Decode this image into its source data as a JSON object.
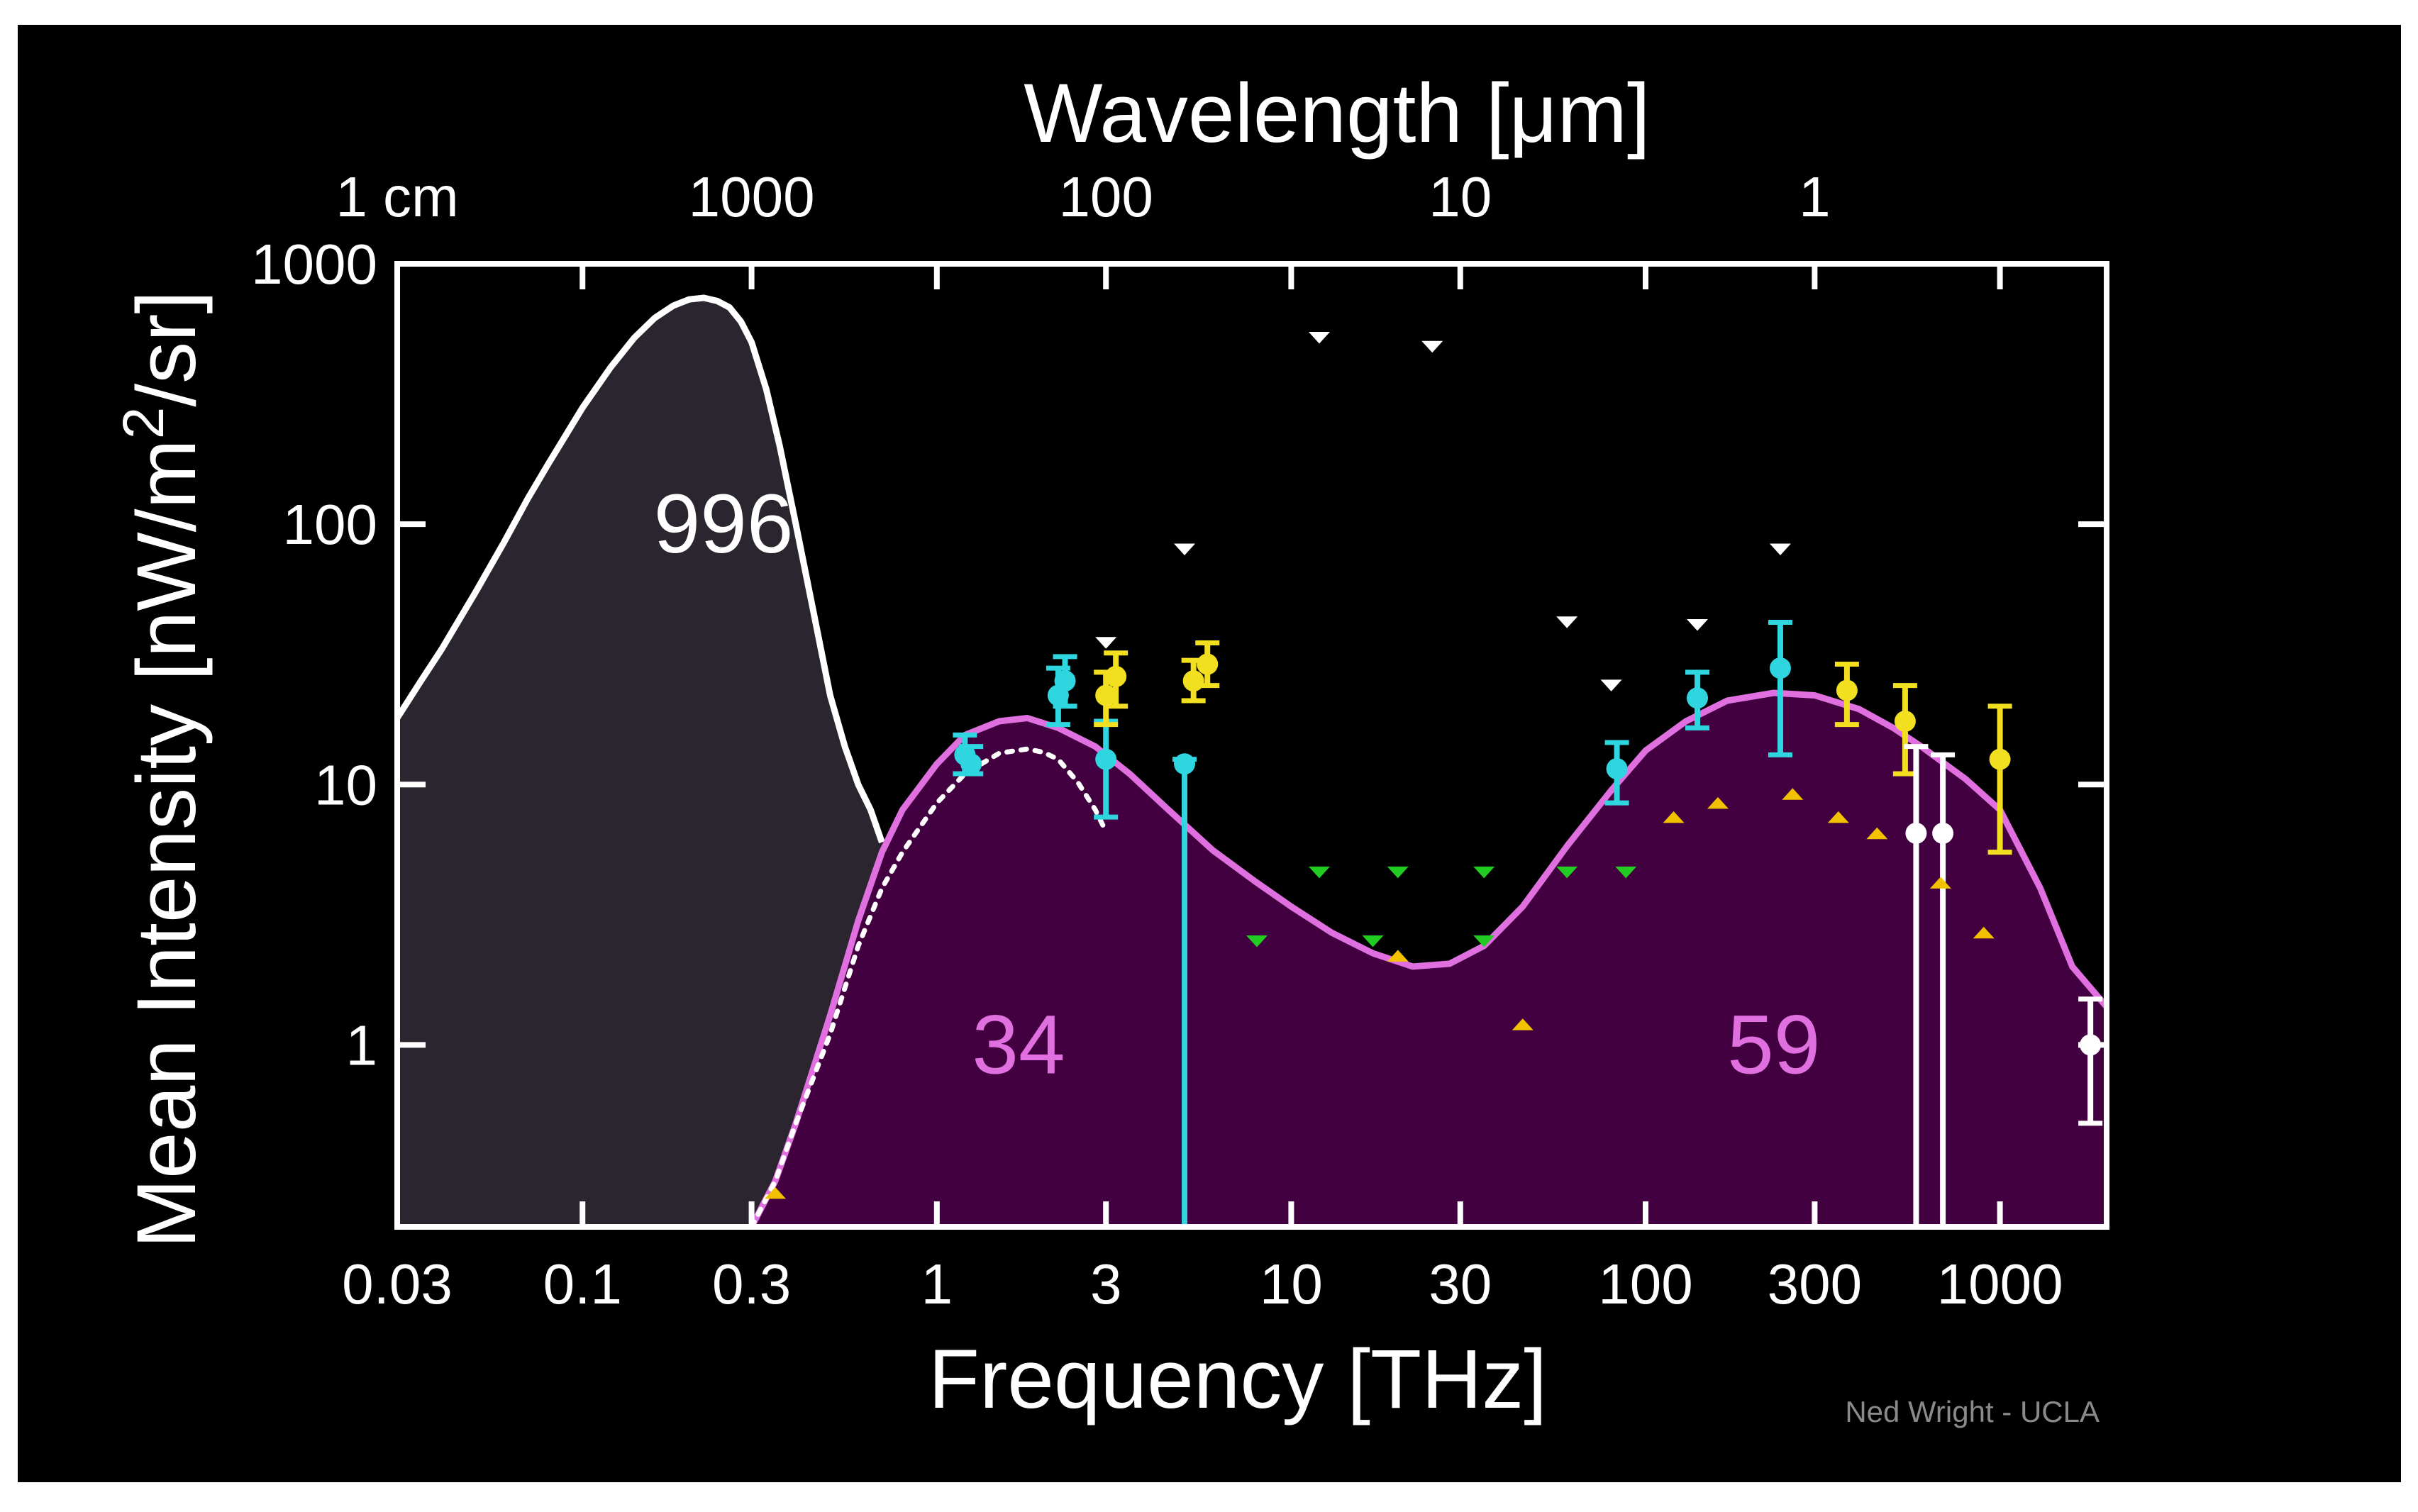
{
  "chart_data": {
    "type": "line",
    "title": "",
    "xlabel": "Frequency [THz]",
    "x2label": "Wavelength [μm]",
    "ylabel_main": "Mean Intensity [nW/m",
    "ylabel_sup": "2",
    "ylabel_tail": "/sr]",
    "x_scale": "log",
    "y_scale": "log",
    "xlim": [
      0.03,
      2000
    ],
    "ylim": [
      0.2,
      1000
    ],
    "x_ticks": [
      {
        "v": 0.03,
        "label": "0.03"
      },
      {
        "v": 0.1,
        "label": "0.1"
      },
      {
        "v": 0.3,
        "label": "0.3"
      },
      {
        "v": 1,
        "label": "1"
      },
      {
        "v": 3,
        "label": "3"
      },
      {
        "v": 10,
        "label": "10"
      },
      {
        "v": 30,
        "label": "30"
      },
      {
        "v": 100,
        "label": "100"
      },
      {
        "v": 300,
        "label": "300"
      },
      {
        "v": 1000,
        "label": "1000"
      }
    ],
    "x2_ticks": [
      {
        "v": 0.03,
        "label": "1 cm"
      },
      {
        "v": 0.3,
        "label": "1000"
      },
      {
        "v": 3,
        "label": "100"
      },
      {
        "v": 30,
        "label": "10"
      },
      {
        "v": 300,
        "label": "1"
      }
    ],
    "y_ticks": [
      {
        "v": 1,
        "label": "1"
      },
      {
        "v": 10,
        "label": "10"
      },
      {
        "v": 100,
        "label": "100"
      },
      {
        "v": 1000,
        "label": "1000"
      }
    ],
    "annotations": [
      {
        "text": "996",
        "x": 0.25,
        "y": 100,
        "color": "#ffffff"
      },
      {
        "text": "34",
        "x": 1.7,
        "y": 1,
        "color": "#e070e0"
      },
      {
        "text": "59",
        "x": 230,
        "y": 1,
        "color": "#e070e0"
      }
    ],
    "credit": "Ned Wright - UCLA",
    "colors": {
      "background": "#000000",
      "frame": "#ffffff",
      "cmb_fill": "#2b2530",
      "cmb_line": "#ffffff",
      "cib_fill": "#420040",
      "cib_line": "#e070e0",
      "dotted": "#ffffff",
      "cyan": "#2fd6e0",
      "yellow": "#f2e020",
      "white_pts": "#ffffff",
      "green": "#22cc22",
      "orange": "#f2c200"
    },
    "series": [
      {
        "name": "",
        "kind": "area",
        "fill": "cmb_fill",
        "line": "cmb_line",
        "x": [
          0.03,
          0.035,
          0.04,
          0.05,
          0.06,
          0.07,
          0.08,
          0.1,
          0.12,
          0.14,
          0.16,
          0.18,
          0.2,
          0.22,
          0.24,
          0.26,
          0.28,
          0.3,
          0.33,
          0.36,
          0.4,
          0.45,
          0.5,
          0.55,
          0.6,
          0.65,
          0.7
        ],
        "y": [
          18,
          25,
          33,
          55,
          85,
          125,
          170,
          280,
          400,
          520,
          620,
          690,
          730,
          740,
          720,
          680,
          600,
          500,
          330,
          200,
          100,
          45,
          22,
          14,
          10,
          8,
          6
        ]
      },
      {
        "name": "",
        "kind": "area",
        "fill": "cib_fill",
        "line": "cib_line",
        "x": [
          0.3,
          0.35,
          0.4,
          0.5,
          0.6,
          0.7,
          0.8,
          1.0,
          1.2,
          1.5,
          1.8,
          2.2,
          2.8,
          3.5,
          4.5,
          6,
          8,
          10,
          13,
          17,
          22,
          28,
          35,
          45,
          60,
          80,
          100,
          130,
          170,
          230,
          300,
          400,
          500,
          600,
          700,
          800,
          1000,
          1300,
          1600,
          2000
        ],
        "y": [
          0.2,
          0.3,
          0.5,
          1.3,
          3,
          5.5,
          8,
          12,
          15.5,
          17.5,
          18,
          16.5,
          14,
          11,
          8,
          5.6,
          4.2,
          3.4,
          2.7,
          2.25,
          2.0,
          2.05,
          2.4,
          3.4,
          5.8,
          9.5,
          13.5,
          17.5,
          21,
          22.5,
          22,
          19.5,
          16.5,
          14,
          12,
          10.5,
          8,
          4,
          2,
          1.4
        ]
      },
      {
        "name": "",
        "kind": "dotted",
        "line": "dotted",
        "x": [
          0.3,
          0.35,
          0.4,
          0.5,
          0.6,
          0.7,
          0.8,
          1.0,
          1.2,
          1.5,
          1.8,
          2.0,
          2.2,
          2.5,
          2.8,
          3.0
        ],
        "y": [
          0.2,
          0.3,
          0.5,
          1.1,
          2.4,
          4,
          5.5,
          8.5,
          11,
          13.2,
          13.7,
          13.3,
          12.5,
          10.2,
          8,
          6.6
        ]
      }
    ],
    "error_points": [
      {
        "group": "cyan",
        "x": 1.2,
        "y": 13,
        "lo": 11,
        "hi": 15.5
      },
      {
        "group": "cyan",
        "x": 1.25,
        "y": 12,
        "lo": 11,
        "hi": 14
      },
      {
        "group": "cyan",
        "x": 2.2,
        "y": 22,
        "lo": 17,
        "hi": 28
      },
      {
        "group": "cyan",
        "x": 2.3,
        "y": 25,
        "lo": 20,
        "hi": 31
      },
      {
        "group": "cyan",
        "x": 3.0,
        "y": 12.5,
        "lo": 7.5,
        "hi": 17.5
      },
      {
        "group": "cyan",
        "x": 5.0,
        "y": 12,
        "lo": 0.2,
        "hi": 12.5
      },
      {
        "group": "cyan",
        "x": 83,
        "y": 11.5,
        "lo": 8.5,
        "hi": 14.5
      },
      {
        "group": "cyan",
        "x": 140,
        "y": 21.5,
        "lo": 16.5,
        "hi": 27
      },
      {
        "group": "cyan",
        "x": 240,
        "y": 28,
        "lo": 13,
        "hi": 42
      },
      {
        "group": "yellow",
        "x": 3.0,
        "y": 22,
        "lo": 17,
        "hi": 27
      },
      {
        "group": "yellow",
        "x": 3.2,
        "y": 26,
        "lo": 20,
        "hi": 32
      },
      {
        "group": "yellow",
        "x": 5.3,
        "y": 25,
        "lo": 21,
        "hi": 30
      },
      {
        "group": "yellow",
        "x": 5.8,
        "y": 29,
        "lo": 24,
        "hi": 35
      },
      {
        "group": "yellow",
        "x": 370,
        "y": 23,
        "lo": 17,
        "hi": 29
      },
      {
        "group": "yellow",
        "x": 540,
        "y": 17.5,
        "lo": 11,
        "hi": 24
      },
      {
        "group": "yellow",
        "x": 1000,
        "y": 12.5,
        "lo": 5.5,
        "hi": 20
      },
      {
        "group": "white_pts",
        "x": 580,
        "y": 6.5,
        "lo": 0.2,
        "hi": 14
      },
      {
        "group": "white_pts",
        "x": 690,
        "y": 6.5,
        "lo": 0.2,
        "hi": 13
      },
      {
        "group": "white_pts",
        "x": 1800,
        "y": 1.0,
        "lo": 0.5,
        "hi": 1.5
      }
    ],
    "markers": [
      {
        "group": "white_pts",
        "dir": "down",
        "x": 12,
        "y": 520
      },
      {
        "group": "white_pts",
        "dir": "down",
        "x": 25,
        "y": 480
      },
      {
        "group": "white_pts",
        "dir": "down",
        "x": 5,
        "y": 80
      },
      {
        "group": "white_pts",
        "dir": "down",
        "x": 3,
        "y": 35
      },
      {
        "group": "white_pts",
        "dir": "down",
        "x": 60,
        "y": 42
      },
      {
        "group": "white_pts",
        "dir": "down",
        "x": 80,
        "y": 24
      },
      {
        "group": "white_pts",
        "dir": "down",
        "x": 140,
        "y": 41
      },
      {
        "group": "white_pts",
        "dir": "down",
        "x": 240,
        "y": 80
      },
      {
        "group": "green",
        "dir": "down",
        "x": 12,
        "y": 4.6
      },
      {
        "group": "green",
        "dir": "down",
        "x": 20,
        "y": 4.6
      },
      {
        "group": "green",
        "dir": "down",
        "x": 35,
        "y": 4.6
      },
      {
        "group": "green",
        "dir": "down",
        "x": 60,
        "y": 4.6
      },
      {
        "group": "green",
        "dir": "down",
        "x": 88,
        "y": 4.6
      },
      {
        "group": "green",
        "dir": "down",
        "x": 8,
        "y": 2.5
      },
      {
        "group": "green",
        "dir": "down",
        "x": 17,
        "y": 2.5
      },
      {
        "group": "green",
        "dir": "down",
        "x": 35,
        "y": 2.5
      },
      {
        "group": "orange",
        "dir": "up",
        "x": 0.35,
        "y": 0.27
      },
      {
        "group": "orange",
        "dir": "up",
        "x": 20,
        "y": 2.2
      },
      {
        "group": "orange",
        "dir": "up",
        "x": 45,
        "y": 1.2
      },
      {
        "group": "orange",
        "dir": "up",
        "x": 120,
        "y": 7.5
      },
      {
        "group": "orange",
        "dir": "up",
        "x": 160,
        "y": 8.5
      },
      {
        "group": "orange",
        "dir": "up",
        "x": 260,
        "y": 9.2
      },
      {
        "group": "orange",
        "dir": "up",
        "x": 350,
        "y": 7.5
      },
      {
        "group": "orange",
        "dir": "up",
        "x": 450,
        "y": 6.5
      },
      {
        "group": "orange",
        "dir": "up",
        "x": 680,
        "y": 4.2
      },
      {
        "group": "orange",
        "dir": "up",
        "x": 900,
        "y": 2.7
      }
    ]
  }
}
